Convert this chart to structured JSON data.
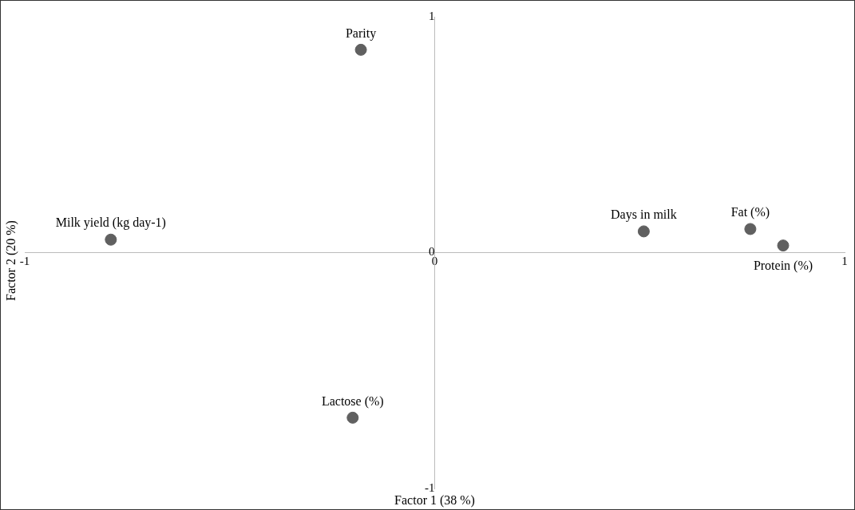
{
  "chart_data": {
    "type": "scatter",
    "xlabel": "Factor 1 (38 %)",
    "ylabel": "Factor 2 (20 %)",
    "x": [
      -0.18,
      -0.79,
      0.51,
      0.77,
      0.85,
      -0.2
    ],
    "series": [
      {
        "color": "#606060",
        "values": [
          0.86,
          0.055,
          0.09,
          0.1,
          0.03,
          -0.7
        ]
      }
    ],
    "xlim": [
      -1,
      1
    ],
    "ylim": [
      -1,
      1
    ],
    "xticks": [
      -1,
      0,
      1
    ],
    "yticks": [
      -1,
      0,
      1
    ],
    "grid": false,
    "legend": false,
    "marker": "circle",
    "annotations": [
      {
        "text": "Parity",
        "x": -0.18,
        "y": 0.86
      },
      {
        "text": "Milk yield (kg day-1)",
        "x": -0.79,
        "y": 0.055
      },
      {
        "text": "Days in milk",
        "x": 0.51,
        "y": 0.09
      },
      {
        "text": "Fat (%)",
        "x": 0.77,
        "y": 0.1
      },
      {
        "text": "Protein (%)",
        "x": 0.85,
        "y": 0.03
      },
      {
        "text": "Lactose (%)",
        "x": -0.2,
        "y": -0.7
      }
    ]
  }
}
